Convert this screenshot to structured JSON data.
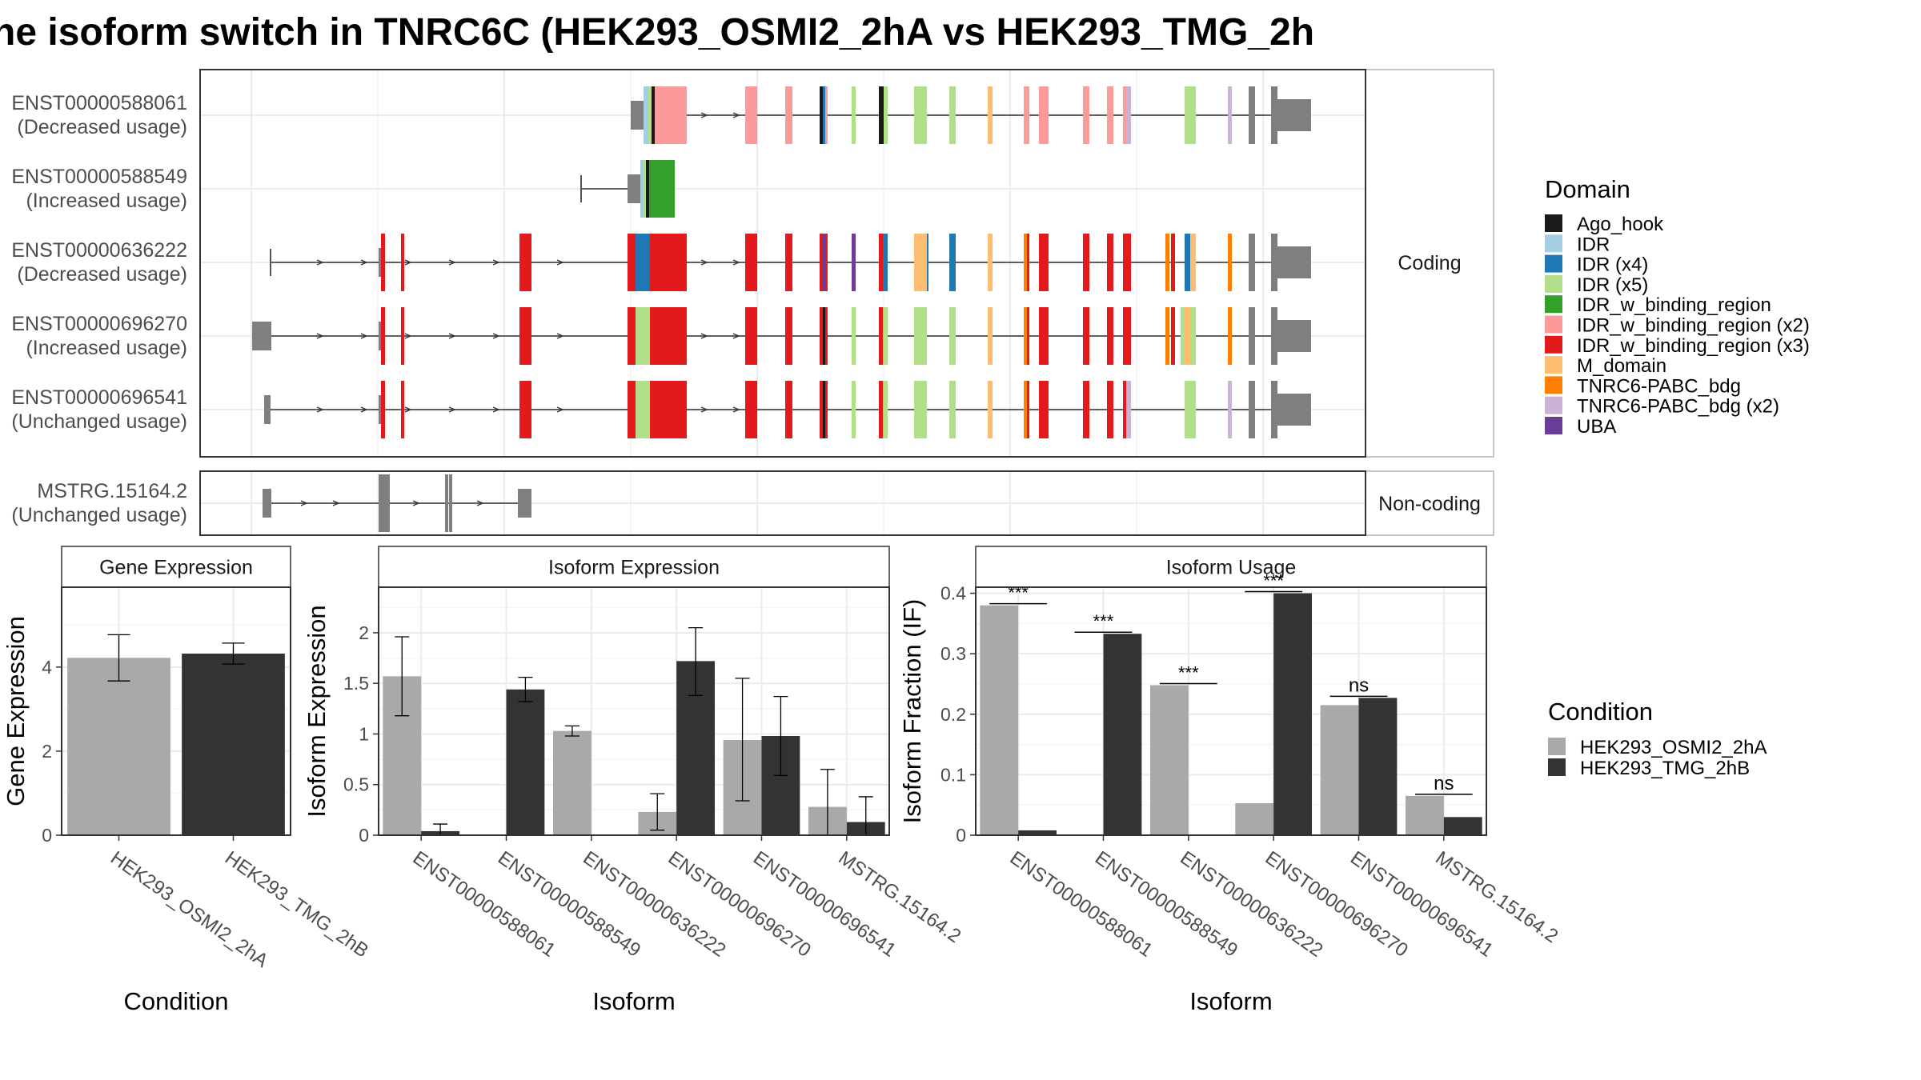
{
  "title": "ne isoform switch in TNRC6C (HEK293_OSMI2_2hA vs HEK293_TMG_2h",
  "structure": {
    "coding_label": "Coding",
    "noncoding_label": "Non-coding",
    "transcripts": [
      {
        "id": "ENST00000588061",
        "usage": "(Decreased usage)",
        "group": "coding"
      },
      {
        "id": "ENST00000588549",
        "usage": "(Increased usage)",
        "group": "coding"
      },
      {
        "id": "ENST00000636222",
        "usage": "(Decreased usage)",
        "group": "coding"
      },
      {
        "id": "ENST00000696270",
        "usage": "(Increased usage)",
        "group": "coding"
      },
      {
        "id": "ENST00000696541",
        "usage": "(Unchanged usage)",
        "group": "coding"
      },
      {
        "id": "MSTRG.15164.2",
        "usage": "(Unchanged usage)",
        "group": "noncoding"
      }
    ]
  },
  "domain_legend": {
    "title": "Domain",
    "items": [
      {
        "label": "Ago_hook",
        "color": "#1a1a1a"
      },
      {
        "label": "IDR",
        "color": "#a6cee3"
      },
      {
        "label": "IDR (x4)",
        "color": "#1f78b4"
      },
      {
        "label": "IDR (x5)",
        "color": "#b2df8a"
      },
      {
        "label": "IDR_w_binding_region",
        "color": "#33a02c"
      },
      {
        "label": "IDR_w_binding_region (x2)",
        "color": "#fb9a99"
      },
      {
        "label": "IDR_w_binding_region (x3)",
        "color": "#e31a1c"
      },
      {
        "label": "M_domain",
        "color": "#fdbf6f"
      },
      {
        "label": "TNRC6-PABC_bdg",
        "color": "#ff7f00"
      },
      {
        "label": "TNRC6-PABC_bdg (x2)",
        "color": "#cab2d6"
      },
      {
        "label": "UBA",
        "color": "#6a3d9a"
      }
    ]
  },
  "condition_legend": {
    "title": "Condition",
    "items": [
      {
        "label": "HEK293_OSMI2_2hA",
        "color": "#a9a9a9"
      },
      {
        "label": "HEK293_TMG_2hB",
        "color": "#333333"
      }
    ]
  },
  "chart_data": [
    {
      "type": "bar",
      "title": "Gene Expression",
      "xlabel": "Condition",
      "ylabel": "Gene Expression",
      "ylim": [
        0,
        5.9
      ],
      "yticks": [
        0,
        2,
        4
      ],
      "categories": [
        "HEK293_OSMI2_2hA",
        "HEK293_TMG_2hB"
      ],
      "values": [
        4.22,
        4.32
      ],
      "errors": [
        [
          3.67,
          4.77
        ],
        [
          4.07,
          4.57
        ]
      ],
      "colors": [
        "#a9a9a9",
        "#333333"
      ]
    },
    {
      "type": "bar",
      "title": "Isoform Expression",
      "xlabel": "Isoform",
      "ylabel": "Isoform Expression",
      "ylim": [
        0,
        2.45
      ],
      "yticks": [
        0.0,
        0.5,
        1.0,
        1.5,
        2.0
      ],
      "categories": [
        "ENST00000588061",
        "ENST00000588549",
        "ENST00000636222",
        "ENST00000696270",
        "ENST00000696541",
        "MSTRG.15164.2"
      ],
      "series": [
        {
          "name": "HEK293_OSMI2_2hA",
          "values": [
            1.57,
            0.0,
            1.03,
            0.23,
            0.94,
            0.28
          ],
          "errors": [
            [
              1.18,
              1.96
            ],
            [
              0.0,
              0.0
            ],
            [
              0.98,
              1.08
            ],
            [
              0.05,
              0.41
            ],
            [
              0.34,
              1.55
            ],
            [
              0.0,
              0.65
            ]
          ]
        },
        {
          "name": "HEK293_TMG_2hB",
          "values": [
            0.04,
            1.44,
            0.0,
            1.72,
            0.98,
            0.13
          ],
          "errors": [
            [
              0.0,
              0.11
            ],
            [
              1.32,
              1.56
            ],
            [
              0.0,
              0.0
            ],
            [
              1.38,
              2.05
            ],
            [
              0.59,
              1.37
            ],
            [
              0.0,
              0.38
            ]
          ]
        }
      ]
    },
    {
      "type": "bar",
      "title": "Isoform Usage",
      "xlabel": "Isoform",
      "ylabel": "Isoform Fraction (IF)",
      "ylim": [
        0,
        0.41
      ],
      "yticks": [
        0.0,
        0.1,
        0.2,
        0.3,
        0.4
      ],
      "categories": [
        "ENST00000588061",
        "ENST00000588549",
        "ENST00000636222",
        "ENST00000696270",
        "ENST00000696541",
        "MSTRG.15164.2"
      ],
      "series": [
        {
          "name": "HEK293_OSMI2_2hA",
          "values": [
            0.38,
            0.0,
            0.248,
            0.053,
            0.215,
            0.065
          ]
        },
        {
          "name": "HEK293_TMG_2hB",
          "values": [
            0.008,
            0.333,
            0.0,
            0.4,
            0.227,
            0.03
          ]
        }
      ],
      "significance": [
        "***",
        "***",
        "***",
        "***",
        "ns",
        "ns"
      ]
    }
  ]
}
